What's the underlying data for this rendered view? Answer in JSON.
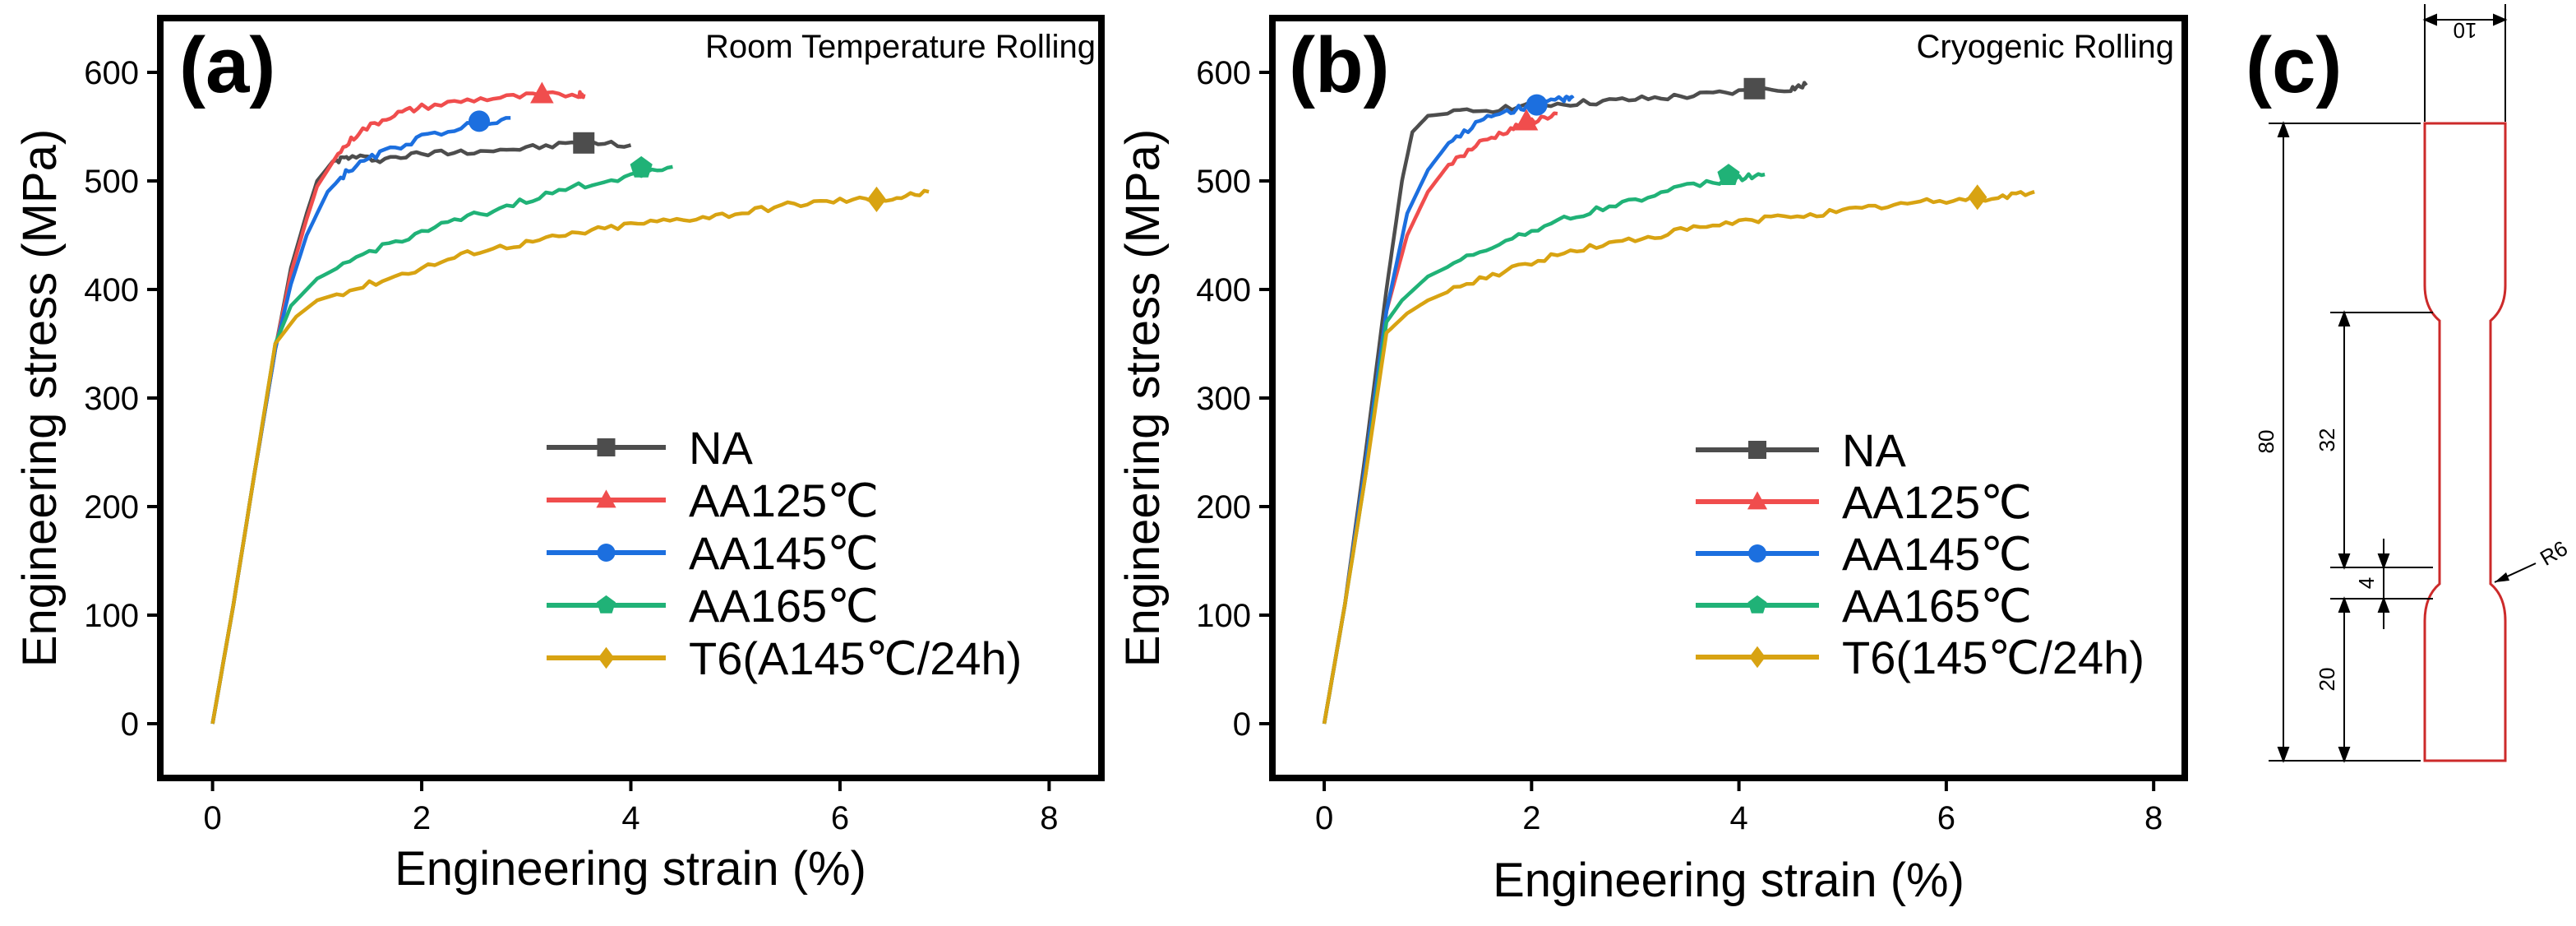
{
  "colors": {
    "NA": "#4d4d4d",
    "AA125": "#f04d4d",
    "AA145": "#1c6fdf",
    "AA165": "#20b277",
    "T6": "#d8a312",
    "specimen_outline": "#cc2a2a",
    "axes": "#000000"
  },
  "chart_data": [
    {
      "panel_label": "(a)",
      "type": "line",
      "title": "Room Temperature Rolling",
      "xlabel": "Engineering strain (%)",
      "ylabel": "Engineering stress (MPa)",
      "xlim": [
        -0.5,
        8.5
      ],
      "ylim": [
        -50,
        650
      ],
      "xticks": [
        "0",
        "2",
        "4",
        "6",
        "8"
      ],
      "yticks": [
        "0",
        "100",
        "200",
        "300",
        "400",
        "500",
        "600"
      ],
      "legend_position": "bottom-right",
      "series": [
        {
          "key": "NA",
          "name": "NA",
          "marker": "square",
          "end_marker": [
            3.55,
            535
          ],
          "points": [
            [
              0,
              0
            ],
            [
              0.2,
              110
            ],
            [
              0.4,
              230
            ],
            [
              0.6,
              345
            ],
            [
              0.75,
              420
            ],
            [
              0.9,
              470
            ],
            [
              1.0,
              500
            ],
            [
              1.15,
              518
            ],
            [
              1.3,
              522
            ],
            [
              1.6,
              520
            ],
            [
              2.0,
              525
            ],
            [
              2.5,
              528
            ],
            [
              3.0,
              530
            ],
            [
              3.5,
              535
            ],
            [
              4.0,
              533
            ]
          ]
        },
        {
          "key": "AA125",
          "name": "AA125℃",
          "marker": "triangle",
          "end_marker": [
            3.15,
            580
          ],
          "points": [
            [
              0,
              0
            ],
            [
              0.2,
              110
            ],
            [
              0.4,
              230
            ],
            [
              0.6,
              345
            ],
            [
              0.75,
              415
            ],
            [
              0.9,
              465
            ],
            [
              1.0,
              495
            ],
            [
              1.2,
              525
            ],
            [
              1.4,
              545
            ],
            [
              1.7,
              560
            ],
            [
              2.0,
              568
            ],
            [
              2.5,
              575
            ],
            [
              3.0,
              578
            ],
            [
              3.5,
              580
            ],
            [
              3.55,
              580
            ]
          ]
        },
        {
          "key": "AA145",
          "name": "AA145℃",
          "marker": "circle",
          "end_marker": [
            2.55,
            555
          ],
          "points": [
            [
              0,
              0
            ],
            [
              0.2,
              110
            ],
            [
              0.4,
              230
            ],
            [
              0.6,
              345
            ],
            [
              0.75,
              405
            ],
            [
              0.9,
              450
            ],
            [
              1.1,
              490
            ],
            [
              1.3,
              510
            ],
            [
              1.6,
              525
            ],
            [
              2.0,
              540
            ],
            [
              2.5,
              553
            ],
            [
              2.85,
              558
            ]
          ]
        },
        {
          "key": "AA165",
          "name": "AA165℃",
          "marker": "pentagon",
          "end_marker": [
            4.1,
            512
          ],
          "points": [
            [
              0,
              0
            ],
            [
              0.2,
              110
            ],
            [
              0.4,
              230
            ],
            [
              0.6,
              350
            ],
            [
              0.75,
              385
            ],
            [
              1.0,
              410
            ],
            [
              1.5,
              435
            ],
            [
              2.0,
              453
            ],
            [
              2.5,
              468
            ],
            [
              3.0,
              482
            ],
            [
              3.5,
              495
            ],
            [
              4.0,
              505
            ],
            [
              4.4,
              513
            ]
          ]
        },
        {
          "key": "T6",
          "name": "T6(A145℃/24h)",
          "marker": "diamond",
          "end_marker": [
            6.35,
            483
          ],
          "points": [
            [
              0,
              0
            ],
            [
              0.2,
              110
            ],
            [
              0.4,
              230
            ],
            [
              0.6,
              350
            ],
            [
              0.8,
              375
            ],
            [
              1.0,
              390
            ],
            [
              1.5,
              405
            ],
            [
              2.0,
              420
            ],
            [
              2.5,
              435
            ],
            [
              3.0,
              443
            ],
            [
              3.5,
              452
            ],
            [
              4.0,
              460
            ],
            [
              4.5,
              465
            ],
            [
              5.0,
              470
            ],
            [
              5.5,
              478
            ],
            [
              6.0,
              482
            ],
            [
              6.5,
              484
            ],
            [
              6.85,
              490
            ]
          ]
        }
      ],
      "legend": [
        "NA",
        "AA125℃",
        "AA145℃",
        "AA165℃",
        "T6(A145℃/24h)"
      ]
    },
    {
      "panel_label": "(b)",
      "type": "line",
      "title": "Cryogenic Rolling",
      "xlabel": "Engineering strain (%)",
      "ylabel": "Engineering stress (MPa)",
      "xlim": [
        -0.5,
        8.3
      ],
      "ylim": [
        -50,
        650
      ],
      "xticks": [
        "0",
        "2",
        "4",
        "6",
        "8"
      ],
      "yticks": [
        "0",
        "100",
        "200",
        "300",
        "400",
        "500",
        "600"
      ],
      "legend_position": "bottom-right",
      "series": [
        {
          "key": "NA",
          "name": "NA",
          "marker": "square",
          "end_marker": [
            4.15,
            585
          ],
          "points": [
            [
              0,
              0
            ],
            [
              0.2,
              110
            ],
            [
              0.4,
              250
            ],
            [
              0.6,
              400
            ],
            [
              0.75,
              500
            ],
            [
              0.85,
              545
            ],
            [
              1.0,
              560
            ],
            [
              1.5,
              565
            ],
            [
              2.0,
              570
            ],
            [
              2.5,
              572
            ],
            [
              3.0,
              575
            ],
            [
              3.5,
              578
            ],
            [
              4.0,
              582
            ],
            [
              4.5,
              585
            ],
            [
              4.65,
              588
            ]
          ]
        },
        {
          "key": "AA125",
          "name": "AA125℃",
          "marker": "triangle",
          "end_marker": [
            1.95,
            555
          ],
          "points": [
            [
              0,
              0
            ],
            [
              0.2,
              110
            ],
            [
              0.4,
              240
            ],
            [
              0.6,
              380
            ],
            [
              0.8,
              450
            ],
            [
              1.0,
              490
            ],
            [
              1.2,
              515
            ],
            [
              1.5,
              535
            ],
            [
              1.8,
              548
            ],
            [
              2.0,
              555
            ],
            [
              2.25,
              562
            ]
          ]
        },
        {
          "key": "AA145",
          "name": "AA145℃",
          "marker": "circle",
          "end_marker": [
            2.05,
            570
          ],
          "points": [
            [
              0,
              0
            ],
            [
              0.2,
              110
            ],
            [
              0.4,
              240
            ],
            [
              0.6,
              380
            ],
            [
              0.8,
              470
            ],
            [
              1.0,
              510
            ],
            [
              1.2,
              535
            ],
            [
              1.5,
              555
            ],
            [
              1.8,
              565
            ],
            [
              2.0,
              570
            ],
            [
              2.3,
              575
            ],
            [
              2.4,
              576
            ]
          ]
        },
        {
          "key": "AA165",
          "name": "AA165℃",
          "marker": "pentagon",
          "end_marker": [
            3.9,
            505
          ],
          "points": [
            [
              0,
              0
            ],
            [
              0.2,
              110
            ],
            [
              0.4,
              230
            ],
            [
              0.6,
              370
            ],
            [
              0.75,
              390
            ],
            [
              1.0,
              412
            ],
            [
              1.5,
              435
            ],
            [
              2.0,
              455
            ],
            [
              2.5,
              470
            ],
            [
              3.0,
              483
            ],
            [
              3.5,
              495
            ],
            [
              4.0,
              503
            ],
            [
              4.25,
              506
            ]
          ]
        },
        {
          "key": "T6",
          "name": "T6(145℃/24h)",
          "marker": "diamond",
          "end_marker": [
            6.3,
            485
          ],
          "points": [
            [
              0,
              0
            ],
            [
              0.2,
              110
            ],
            [
              0.4,
              230
            ],
            [
              0.6,
              360
            ],
            [
              0.8,
              378
            ],
            [
              1.0,
              390
            ],
            [
              1.5,
              410
            ],
            [
              2.0,
              425
            ],
            [
              2.5,
              438
            ],
            [
              3.0,
              446
            ],
            [
              3.5,
              455
            ],
            [
              4.0,
              462
            ],
            [
              4.5,
              468
            ],
            [
              5.0,
              472
            ],
            [
              5.5,
              478
            ],
            [
              6.0,
              482
            ],
            [
              6.5,
              485
            ],
            [
              6.85,
              490
            ]
          ]
        }
      ],
      "legend": [
        "NA",
        "AA125℃",
        "AA145℃",
        "AA165℃",
        "T6(145℃/24h)"
      ]
    }
  ],
  "specimen": {
    "panel_label": "(c)",
    "type": "diagram",
    "dimensions": {
      "width": "10",
      "total_length": "80",
      "gauge_length": "32",
      "transition": "4",
      "grip_length": "20",
      "radius": "R6"
    }
  }
}
